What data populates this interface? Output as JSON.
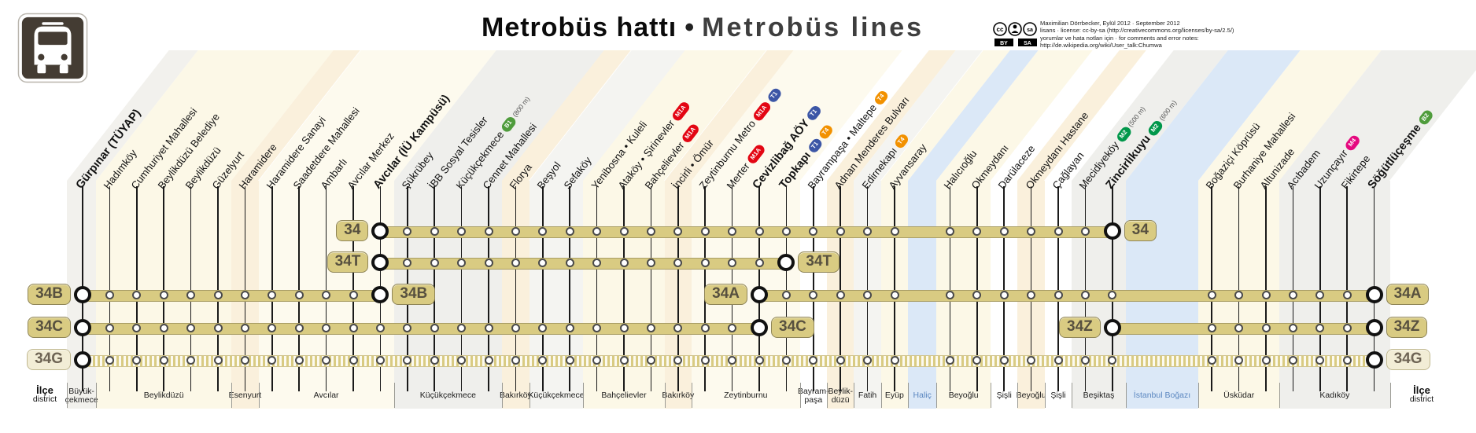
{
  "title": {
    "tr": "Metrobüs hattı",
    "separator": "•",
    "en": "Metrobüs lines"
  },
  "credits": {
    "line1": "Maximilian Dörrbecker, Eylül 2012 · September 2012",
    "line2": "lisans · license: cc-by-sa (http://creativecommons.org/licenses/by-sa/2.5/)",
    "line3": "yorumlar ve hata notları için · for comments and error notes:",
    "line4": "http://de.wikipedia.org/wiki/User_talk:Chumwa",
    "cc_circles": [
      "cc",
      "by",
      "sa"
    ],
    "cc_by": "BY",
    "cc_sa": "SA"
  },
  "legend_left": {
    "tr": "İlçe",
    "en": "district"
  },
  "legend_right": {
    "tr": "İlçe",
    "en": "district"
  },
  "connection_colors": {
    "M1A": "#e30613",
    "T1": "#3c56a6",
    "T4": "#f29100",
    "M2": "#00974a",
    "M4": "#e5097f",
    "B1": "#4f9c3c",
    "B2": "#4f9c3c"
  },
  "line_color": "#d9cb82",
  "stations": [
    {
      "name": "Gürpınar (TÜYAP)",
      "bold": true
    },
    {
      "name": "Hadımköy"
    },
    {
      "name": "Cumhuriyet Mahallesi"
    },
    {
      "name": "Beylikdüzü Belediye"
    },
    {
      "name": "Beylikdüzü"
    },
    {
      "name": "Güzelyurt"
    },
    {
      "name": "Haramidere"
    },
    {
      "name": "Haramidere Sanayi"
    },
    {
      "name": "Saadetdere Mahallesi"
    },
    {
      "name": "Ambarlı"
    },
    {
      "name": "Avcılar Merkez"
    },
    {
      "name": "Avcılar (İÜ Kampüsü)",
      "bold": true
    },
    {
      "name": "Şükrübey"
    },
    {
      "name": "İBB Sosyal Tesisler"
    },
    {
      "name": "Küçükçekmece",
      "connections": [
        "B1"
      ],
      "note": "(800 m)"
    },
    {
      "name": "Cennet Mahallesi"
    },
    {
      "name": "Florya"
    },
    {
      "name": "Beşyol"
    },
    {
      "name": "Sefaköy"
    },
    {
      "name": "Yenibosna • Kuleli"
    },
    {
      "name": "Ataköy • Şirinevler",
      "connections": [
        "M1A"
      ]
    },
    {
      "name": "Bahçelievler",
      "connections": [
        "M1A"
      ]
    },
    {
      "name": "İncirli • Ömür"
    },
    {
      "name": "Zeytinburnu Metro",
      "connections": [
        "M1A",
        "T1"
      ]
    },
    {
      "name": "Merter",
      "connections": [
        "M1A"
      ]
    },
    {
      "name": "Cevizlibağ AÖY",
      "bold": true,
      "connections": [
        "T1"
      ]
    },
    {
      "name": "Topkapı",
      "bold": true,
      "connections": [
        "T1",
        "T4"
      ]
    },
    {
      "name": "Bayrampaşa • Maltepe",
      "connections": [
        "T4"
      ]
    },
    {
      "name": "Adnan Menderes Bulvarı"
    },
    {
      "name": "Edirnekapı",
      "connections": [
        "T4"
      ]
    },
    {
      "name": "Ayvansaray"
    },
    {
      "name": "Halıcıoğlu",
      "water_before": "Haliç"
    },
    {
      "name": "Okmeydanı"
    },
    {
      "name": "Darülaceze"
    },
    {
      "name": "Okmeydanı Hastane"
    },
    {
      "name": "Çağlayan"
    },
    {
      "name": "Mecidiyeköy",
      "connections": [
        "M2"
      ],
      "note": "(500 m)"
    },
    {
      "name": "Zincirlikuyu",
      "bold": true,
      "connections": [
        "M2"
      ],
      "note": "(600 m)"
    },
    {
      "name": "Boğaziçi Köprüsü",
      "water_before": "İstanbul Boğazı"
    },
    {
      "name": "Burhaniye Mahallesi"
    },
    {
      "name": "Altunizade"
    },
    {
      "name": "Acıbadem"
    },
    {
      "name": "Uzunçayır",
      "connections": [
        "M4"
      ]
    },
    {
      "name": "Fikirtepe"
    },
    {
      "name": "Söğütlüçeşme",
      "bold": true,
      "connections": [
        "B2"
      ]
    }
  ],
  "districts": [
    {
      "label": [
        "Büyük-",
        "çekmece"
      ],
      "from": 1,
      "to": 1,
      "fill": "#f2f1ed"
    },
    {
      "label": [
        "Beylikdüzü"
      ],
      "from": 2,
      "to": 6,
      "fill": "#fcf8e7"
    },
    {
      "label": [
        "Esenyurt"
      ],
      "from": 7,
      "to": 7,
      "fill": "#faf0dc"
    },
    {
      "label": [
        "Avcılar"
      ],
      "from": 8,
      "to": 12,
      "fill": "#fdfaee"
    },
    {
      "label": [
        "Küçükçekmece"
      ],
      "from": 13,
      "to": 16,
      "fill": "#efefec"
    },
    {
      "label": [
        "Bakırköy"
      ],
      "from": 17,
      "to": 17,
      "fill": "#faf0dc"
    },
    {
      "label": [
        "Küçükçekmece"
      ],
      "from": 18,
      "to": 19,
      "fill": "#f4f4f1"
    },
    {
      "label": [
        "Bahçelievler"
      ],
      "from": 20,
      "to": 22,
      "fill": "#fcf8e7"
    },
    {
      "label": [
        "Bakırköy"
      ],
      "from": 23,
      "to": 23,
      "fill": "#faf0dc"
    },
    {
      "label": [
        "Zeytinburnu"
      ],
      "from": 24,
      "to": 27,
      "fill": "#fdfaee"
    },
    {
      "label": [
        "Bayram-",
        "paşa"
      ],
      "from": 28,
      "to": 28,
      "fill": "#ffffff"
    },
    {
      "label": [
        "Beylik-",
        "düzü"
      ],
      "from": 29,
      "to": 29,
      "fill": "#faf0dc"
    },
    {
      "label": [
        "Fatih"
      ],
      "from": 30,
      "to": 30,
      "fill": "#f4f4f1"
    },
    {
      "label": [
        "Eyüp"
      ],
      "from": 31,
      "to": 31,
      "fill": "#fcf8e7"
    },
    {
      "label": [
        "Haliç"
      ],
      "water": true,
      "between": [
        31,
        32
      ],
      "fill": "#dbe8f7"
    },
    {
      "label": [
        "Beyoğlu"
      ],
      "from": 32,
      "to": 33,
      "fill": "#fcf8e7"
    },
    {
      "label": [
        "Şişli"
      ],
      "from": 34,
      "to": 34,
      "fill": "#ffffff"
    },
    {
      "label": [
        "Beyoğlu"
      ],
      "from": 35,
      "to": 35,
      "fill": "#faf0dc"
    },
    {
      "label": [
        "Şişli"
      ],
      "from": 36,
      "to": 36,
      "fill": "#ffffff"
    },
    {
      "label": [
        "Beşiktaş"
      ],
      "from": 37,
      "to": 38,
      "fill": "#efefec"
    },
    {
      "label": [
        "İstanbul  Boğazı"
      ],
      "water": true,
      "between": [
        38,
        39
      ],
      "fill": "#dbe8f7"
    },
    {
      "label": [
        "Üsküdar"
      ],
      "from": 39,
      "to": 41,
      "fill": "#fcf8e7"
    },
    {
      "label": [
        "Kadıköy"
      ],
      "from": 42,
      "to": 45,
      "fill": "#efefec"
    }
  ],
  "lines": [
    {
      "id": "34",
      "from": "Avcılar (İÜ Kampüsü)",
      "to": "Zincirlikuyu",
      "from_idx": 12,
      "to_idx": 38,
      "row": 0
    },
    {
      "id": "34T",
      "from": "Avcılar (İÜ Kampüsü)",
      "to": "Topkapı",
      "from_idx": 12,
      "to_idx": 27,
      "row": 1
    },
    {
      "id": "34B",
      "from": "Gürpınar (TÜYAP)",
      "to": "Avcılar (İÜ Kampüsü)",
      "from_idx": 1,
      "to_idx": 12,
      "row": 2
    },
    {
      "id": "34A",
      "from": "Cevizlibağ AÖY",
      "to": "Söğütlüçeşme",
      "from_idx": 26,
      "to_idx": 45,
      "row": 2
    },
    {
      "id": "34C",
      "from": "Gürpınar (TÜYAP)",
      "to": "Cevizlibağ AÖY",
      "from_idx": 1,
      "to_idx": 26,
      "row": 3
    },
    {
      "id": "34Z",
      "from": "Zincirlikuyu",
      "to": "Söğütlüçeşme",
      "from_idx": 38,
      "to_idx": 45,
      "row": 3
    },
    {
      "id": "34G",
      "from": "Gürpınar (TÜYAP)",
      "to": "Söğütlüçeşme",
      "from_idx": 1,
      "to_idx": 45,
      "row": 4,
      "striped": true,
      "pale": true
    }
  ]
}
